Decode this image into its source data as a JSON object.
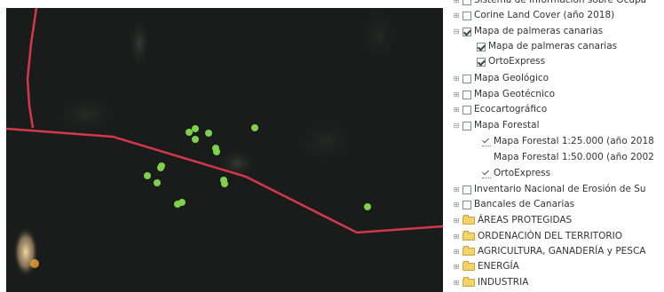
{
  "layer_tree": {
    "items": [
      {
        "label": "Sistema de Información sobre Ocupa",
        "kind": "checkbox",
        "checked": false,
        "expander": "+"
      },
      {
        "label": "Corine Land Cover (año 2018)",
        "kind": "checkbox",
        "checked": false,
        "expander": "+"
      },
      {
        "label": "Mapa de palmeras canarias",
        "kind": "checkbox",
        "checked": true,
        "expander": "-"
      },
      {
        "label": "Mapa de palmeras canarias",
        "kind": "checkbox",
        "checked": true,
        "expander": ""
      },
      {
        "label": "OrtoExpress",
        "kind": "checkbox",
        "checked": true,
        "expander": ""
      },
      {
        "label": "Mapa Geológico",
        "kind": "checkbox",
        "checked": false,
        "expander": "+"
      },
      {
        "label": "Mapa Geotécnico",
        "kind": "checkbox",
        "checked": false,
        "expander": "+"
      },
      {
        "label": "Ecocartográfico",
        "kind": "checkbox",
        "checked": false,
        "expander": "+"
      },
      {
        "label": "Mapa Forestal",
        "kind": "checkbox",
        "checked": false,
        "expander": "-"
      },
      {
        "label": "Mapa Forestal 1:25.000 (año 2018",
        "kind": "tick",
        "checked": true,
        "expander": ""
      },
      {
        "label": "Mapa Forestal 1:50.000 (año 2002",
        "kind": "none",
        "checked": false,
        "expander": ""
      },
      {
        "label": "OrtoExpress",
        "kind": "tick",
        "checked": true,
        "expander": ""
      },
      {
        "label": "Inventario Nacional de Erosión de Su",
        "kind": "checkbox",
        "checked": false,
        "expander": "+"
      },
      {
        "label": "Bancales de Canarias",
        "kind": "checkbox",
        "checked": false,
        "expander": "+"
      },
      {
        "label": "ÁREAS PROTEGIDAS",
        "kind": "folder",
        "checked": false,
        "expander": "+"
      },
      {
        "label": "ORDENACIÓN DEL TERRITORIO",
        "kind": "folder",
        "checked": false,
        "expander": "+"
      },
      {
        "label": "AGRICULTURA, GANADERÍA y PESCA",
        "kind": "folder",
        "checked": false,
        "expander": "+"
      },
      {
        "label": "ENERGÍA",
        "kind": "folder",
        "checked": false,
        "expander": "+"
      },
      {
        "label": "INDUSTRIA",
        "kind": "folder",
        "checked": false,
        "expander": "+"
      }
    ]
  },
  "map": {
    "background_color": "#1a1c1b",
    "boundary_color": "#d3384b",
    "palm_marker_color": "#7ed14a",
    "palm_marker_count": 16
  }
}
